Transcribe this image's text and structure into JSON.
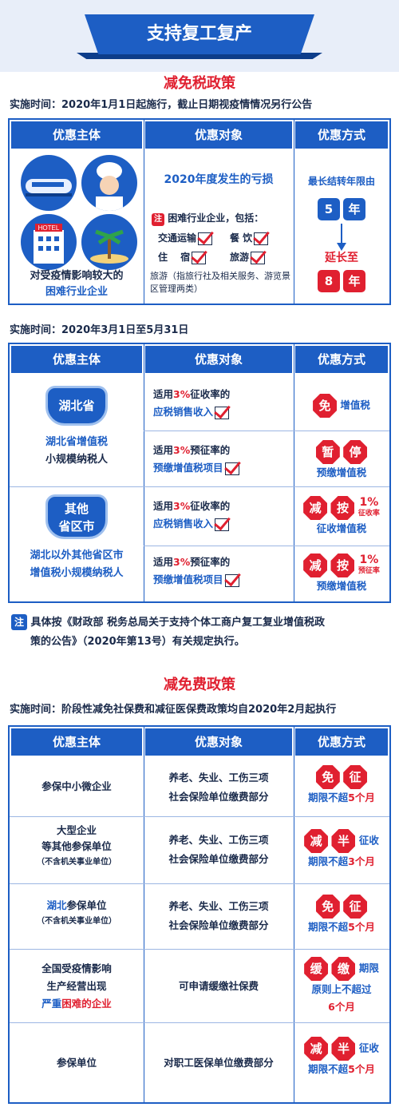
{
  "banner": {
    "title": "支持复工复产"
  },
  "tax": {
    "title": "减免税政策",
    "impl1": {
      "label": "实施时间：",
      "text": "2020年1月1日起施行，截止日期视疫情情况另行公告"
    },
    "headers": [
      "优惠主体",
      "优惠对象",
      "优惠方式"
    ],
    "t1": {
      "subject_line1": "对受疫情影响较大的",
      "subject_line2": "困难行业企业",
      "loss": "2020年度发生的亏损",
      "note_tag": "注",
      "note_title": "困难行业企业，包括：",
      "industries": [
        "交通运输",
        "餐 饮",
        "住　 宿",
        "旅游"
      ],
      "tour_note": "旅游（指旅行社及相关服务、游览景区管理两类）",
      "carry_title": "最长结转年限由",
      "from_num": "5",
      "from_unit": "年",
      "extend": "延长至",
      "to_num": "8",
      "to_unit": "年",
      "hotel_sign": "HOTEL"
    },
    "impl2": {
      "label": "实施时间：",
      "text": "2020年3月1日至5月31日"
    },
    "t2": {
      "hubei_badge": "湖北省",
      "hubei_l1": "湖北省增值税",
      "hubei_l2": "小规模纳税人",
      "other_badge_l1": "其他",
      "other_badge_l2": "省区市",
      "other_l1": "湖北以外其他省区市",
      "other_l2": "增值税小规模纳税人",
      "rows": [
        {
          "pre": "适用",
          "rate": "3%",
          "post": "征收率的",
          "item": "应税销售收入"
        },
        {
          "pre": "适用",
          "rate": "3%",
          "post": "预征率的",
          "item": "预缴增值税项目"
        },
        {
          "pre": "适用",
          "rate": "3%",
          "post": "征收率的",
          "item": "应税销售收入"
        },
        {
          "pre": "适用",
          "rate": "3%",
          "post": "预征率的",
          "item": "预缴增值税项目"
        }
      ],
      "m1_badge": "免",
      "m1_text": "增值税",
      "m2_b1": "暂",
      "m2_b2": "停",
      "m2_text": "预缴增值税",
      "m3_b1": "减",
      "m3_b2": "按",
      "m3_pct": "1%",
      "m3_small": "征收率",
      "m3_text": "征收增值税",
      "m4_b1": "减",
      "m4_b2": "按",
      "m4_pct": "1%",
      "m4_small": "预征率",
      "m4_text": "预缴增值税"
    },
    "note": {
      "tag": "注",
      "line1": "具体按《财政部 税务总局关于支持个体工商户复工复业增值税政",
      "line2": "策的公告》（2020年第13号）有关规定执行。"
    }
  },
  "fee": {
    "title": "减免费政策",
    "impl": {
      "label": "实施时间：",
      "text": "阶段性减免社保费和减征医保费政策均自2020年2月起执行"
    },
    "headers": [
      "优惠主体",
      "优惠对象",
      "优惠方式"
    ],
    "r1": {
      "subject": "参保中小微企业",
      "obj1": "养老、失业、工伤三项",
      "obj2": "社会保险单位缴费部分",
      "b1": "免",
      "b2": "征",
      "limit_pre": "期限不超",
      "limit": "5个月"
    },
    "r2": {
      "s1": "大型企业",
      "s2": "等其他参保单位",
      "s3": "（不含机关事业单位）",
      "obj1": "养老、失业、工伤三项",
      "obj2": "社会保险单位缴费部分",
      "b1": "减",
      "b2": "半",
      "tail": "征收",
      "limit_pre": "期限不超",
      "limit": "3个月"
    },
    "r3": {
      "s1a": "湖北",
      "s1b": "参保单位",
      "s2": "（不含机关事业单位）",
      "obj1": "养老、失业、工伤三项",
      "obj2": "社会保险单位缴费部分",
      "b1": "免",
      "b2": "征",
      "limit_pre": "期限不超",
      "limit": "5个月"
    },
    "r4": {
      "s1": "全国受疫情影响",
      "s2": "生产经营出现",
      "s3a": "严重",
      "s3b": "困难的企业",
      "obj": "可申请缓缴社保费",
      "b1": "缓",
      "b2": "缴",
      "tail": "期限",
      "line2": "原则上不超过",
      "limit": "6个月"
    },
    "r5": {
      "subject": "参保单位",
      "obj": "对职工医保单位缴费部分",
      "b1": "减",
      "b2": "半",
      "tail": "征收",
      "limit_pre": "期限不超",
      "limit": "5个月"
    }
  }
}
